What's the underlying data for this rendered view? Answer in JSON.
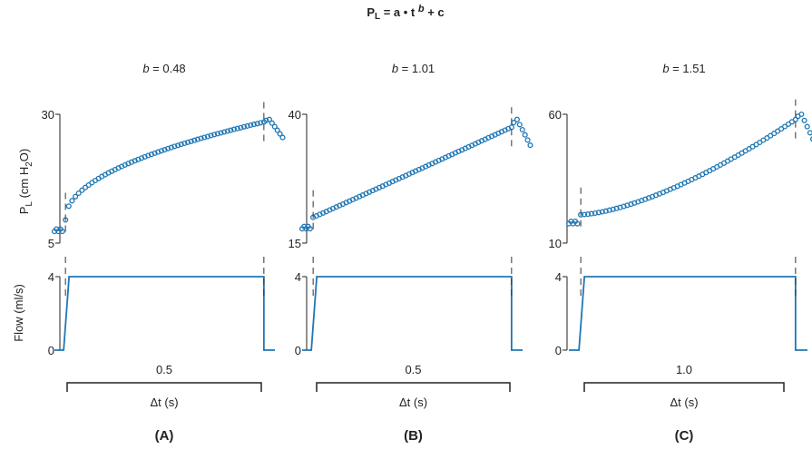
{
  "equation": {
    "base": "P",
    "sub": "L",
    "mid": " = a • t ",
    "exp": "b",
    "tail": " + c"
  },
  "y_label_pressure": {
    "base": "P",
    "sub": "L",
    "mid": " (cm H",
    "sub2": "2",
    "tail": "O)"
  },
  "y_label_flow": "Flow (ml/s)",
  "colors": {
    "data": "#1f77b4",
    "axis": "#222222"
  },
  "chart_data": [
    {
      "type": "scatter",
      "panel_label": "(A)",
      "b_prefix": "b",
      "b_rest": " = 0.48",
      "b": 0.48,
      "pressure": {
        "ylim": [
          5,
          30
        ],
        "yticks": [
          "30",
          "5"
        ],
        "t_start": 0.05,
        "t_end": 0.95,
        "p_start": 9.5,
        "p_end": 28.5,
        "baseline": 7.5,
        "peak": 29.0,
        "tail_end": 25.5
      },
      "flow": {
        "ylim": [
          0,
          4
        ],
        "yticks": [
          "4",
          "0"
        ],
        "value": 4
      },
      "duration_label": "0.5",
      "xlabel": "Δt (s)"
    },
    {
      "type": "scatter",
      "panel_label": "(B)",
      "b_prefix": "b",
      "b_rest": " = 1.01",
      "b": 1.01,
      "pressure": {
        "ylim": [
          15,
          40
        ],
        "yticks": [
          "40",
          "15"
        ],
        "t_start": 0.05,
        "t_end": 0.95,
        "p_start": 20.0,
        "p_end": 37.5,
        "baseline": 18.0,
        "peak": 39.0,
        "tail_end": 34.0
      },
      "flow": {
        "ylim": [
          0,
          4
        ],
        "yticks": [
          "4",
          "0"
        ],
        "value": 4
      },
      "duration_label": "0.5",
      "xlabel": "Δt (s)"
    },
    {
      "type": "scatter",
      "panel_label": "(C)",
      "b_prefix": "b",
      "b_rest": " = 1.51",
      "b": 1.51,
      "pressure": {
        "ylim": [
          10,
          60
        ],
        "yticks": [
          "60",
          "10"
        ],
        "t_start": 0.05,
        "t_end": 0.95,
        "p_start": 21.0,
        "p_end": 58.0,
        "baseline": 18.0,
        "peak": 60.0,
        "tail_end": 48.0
      },
      "flow": {
        "ylim": [
          0,
          4
        ],
        "yticks": [
          "4",
          "0"
        ],
        "value": 4
      },
      "duration_label": "1.0",
      "xlabel": "Δt (s)"
    }
  ]
}
